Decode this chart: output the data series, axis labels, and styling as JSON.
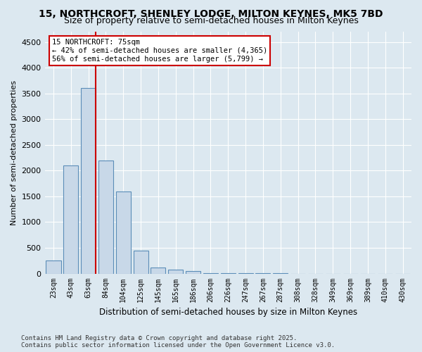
{
  "title1": "15, NORTHCROFT, SHENLEY LODGE, MILTON KEYNES, MK5 7BD",
  "title2": "Size of property relative to semi-detached houses in Milton Keynes",
  "xlabel": "Distribution of semi-detached houses by size in Milton Keynes",
  "ylabel": "Number of semi-detached properties",
  "footnote": "Contains HM Land Registry data © Crown copyright and database right 2025.\nContains public sector information licensed under the Open Government Licence v3.0.",
  "categories": [
    "23sqm",
    "43sqm",
    "63sqm",
    "84sqm",
    "104sqm",
    "125sqm",
    "145sqm",
    "165sqm",
    "186sqm",
    "206sqm",
    "226sqm",
    "247sqm",
    "267sqm",
    "287sqm",
    "308sqm",
    "328sqm",
    "349sqm",
    "369sqm",
    "389sqm",
    "410sqm",
    "430sqm"
  ],
  "values": [
    250,
    2100,
    3600,
    2200,
    1600,
    450,
    120,
    80,
    50,
    10,
    5,
    2,
    1,
    1,
    0,
    0,
    0,
    0,
    0,
    0,
    0
  ],
  "bar_color": "#c8d8e8",
  "bar_edge_color": "#5b8db8",
  "property_line_x": 2,
  "property_sqm": 75,
  "annotation_title": "15 NORTHCROFT: 75sqm",
  "annotation_line1": "← 42% of semi-detached houses are smaller (4,365)",
  "annotation_line2": "56% of semi-detached houses are larger (5,799) →",
  "ylim": [
    0,
    4700
  ],
  "yticks": [
    0,
    500,
    1000,
    1500,
    2000,
    2500,
    3000,
    3500,
    4000,
    4500
  ],
  "bg_color": "#dce8f0",
  "plot_bg_color": "#dce8f0",
  "grid_color": "#ffffff",
  "annotation_box_color": "#ffffff",
  "annotation_box_edge": "#cc0000",
  "red_line_color": "#cc0000"
}
